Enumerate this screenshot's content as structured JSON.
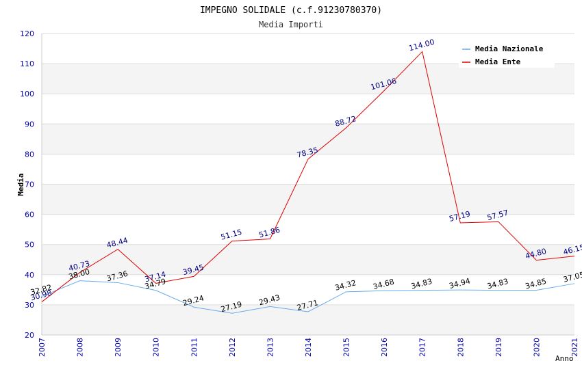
{
  "chart_data": {
    "type": "line",
    "title": "IMPEGNO SOLIDALE (c.f.91230780370)",
    "subtitle": "Media Importi",
    "xlabel": "Anno",
    "ylabel": "Media",
    "ylim": [
      20,
      120
    ],
    "yticks": [
      20,
      30,
      40,
      50,
      60,
      70,
      80,
      90,
      100,
      110,
      120
    ],
    "ytick_labels": [
      "20",
      "30",
      "40",
      "50",
      "60",
      "70",
      "80",
      "90",
      "100",
      "110",
      "120"
    ],
    "categories": [
      "2007",
      "2008",
      "2009",
      "2010",
      "2011",
      "2012",
      "2013",
      "2014",
      "2015",
      "2016",
      "2017",
      "2018",
      "2019",
      "2020",
      "2021"
    ],
    "grid": true,
    "legend_position": "top-right",
    "series": [
      {
        "name": "Media Nazionale",
        "color": "#66aaee",
        "label_color": "#000000",
        "values": [
          32.82,
          38.0,
          37.36,
          34.79,
          29.24,
          27.19,
          29.43,
          27.71,
          34.32,
          34.68,
          34.83,
          34.94,
          34.83,
          34.85,
          37.05
        ],
        "labels": [
          "32.82",
          "38.00",
          "37.36",
          "34.79",
          "29.24",
          "27.19",
          "29.43",
          "27.71",
          "34.32",
          "34.68",
          "34.83",
          "34.94",
          "34.83",
          "34.85",
          "37.05"
        ]
      },
      {
        "name": "Media Ente",
        "color": "#dd0000",
        "label_color": "#000080",
        "values": [
          30.98,
          40.73,
          48.44,
          37.14,
          39.45,
          51.15,
          51.86,
          78.35,
          88.72,
          101.06,
          114.0,
          57.19,
          57.57,
          44.8,
          46.15
        ],
        "labels": [
          "30.98",
          "40.73",
          "48.44",
          "37.14",
          "39.45",
          "51.15",
          "51.86",
          "78.35",
          "88.72",
          "101.06",
          "114.00",
          "57.19",
          "57.57",
          "44.80",
          "46.15"
        ]
      }
    ]
  }
}
